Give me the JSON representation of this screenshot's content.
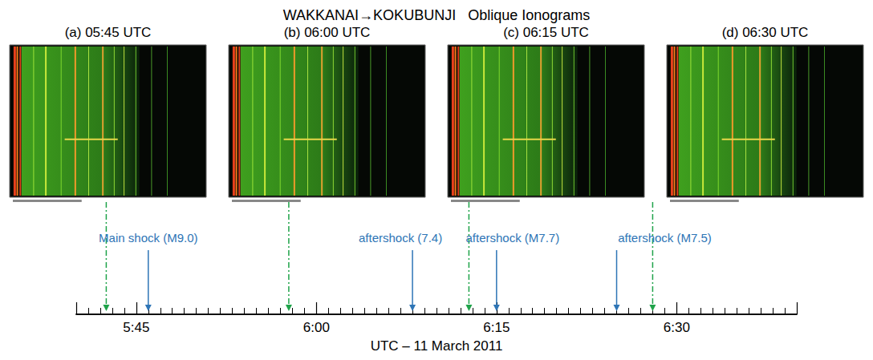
{
  "chart_data": {
    "type": "timeline",
    "title": "WAKKANAI→KOKUBUNJI   Oblique Ionograms",
    "xlabel": "UTC – 11 March 2011",
    "xlim": [
      340,
      400
    ],
    "xticks": [
      {
        "value": 345,
        "label": "5:45"
      },
      {
        "value": 360,
        "label": "6:00"
      },
      {
        "value": 375,
        "label": "6:15"
      },
      {
        "value": 390,
        "label": "6:30"
      }
    ],
    "events": {
      "color": "#2e75b6",
      "labels": [
        "Main shock (M9.0)",
        "aftershock (7.4)",
        "aftershock (M7.7)",
        "aftershock (M7.5)"
      ],
      "x": [
        346,
        368,
        375,
        385
      ]
    },
    "ionograms": {
      "color": "#1fa34a",
      "labels": [
        "(a) 05:45 UTC",
        "(b) 06:00 UTC",
        "(c) 06:15 UTC",
        "(d) 06:30 UTC"
      ],
      "x": [
        342.5,
        357.7,
        372.7,
        388
      ]
    }
  }
}
